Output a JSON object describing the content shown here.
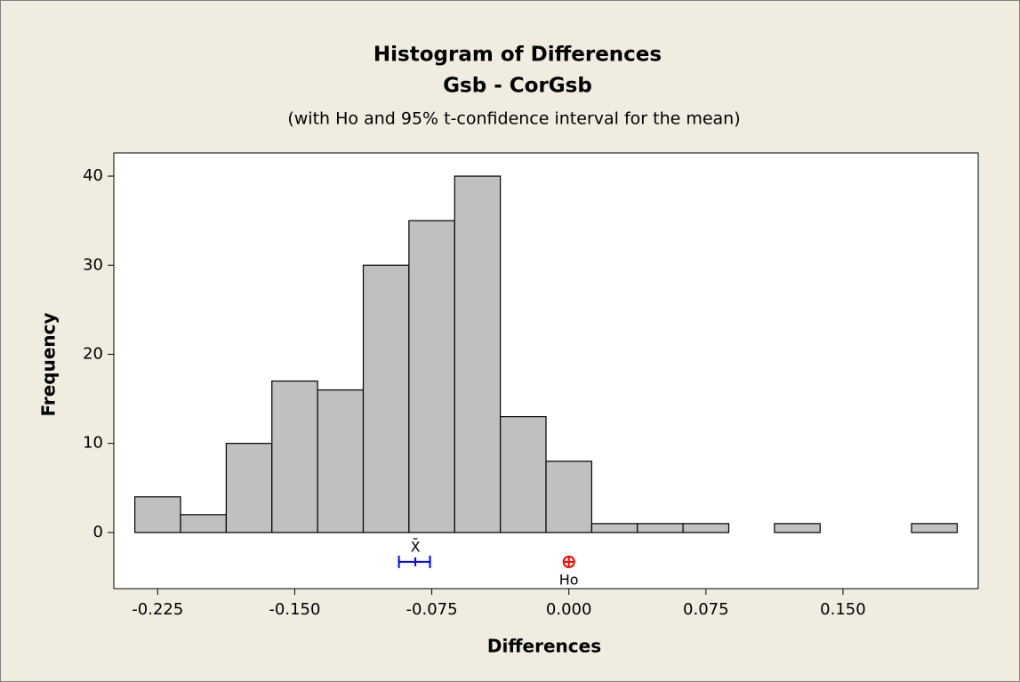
{
  "chart_data": {
    "type": "histogram",
    "title": "Histogram of Differences",
    "subtitle": "Gsb - CorGsb",
    "note": "(with Ho and 95% t-confidence interval for the mean)",
    "xlabel": "Differences",
    "ylabel": "Frequency",
    "bins": [
      -0.2375,
      -0.2125,
      -0.1875,
      -0.1625,
      -0.1375,
      -0.1125,
      -0.0875,
      -0.0625,
      -0.0375,
      -0.0125,
      0.0125,
      0.0375,
      0.0625,
      0.0875,
      0.1125,
      0.1375,
      0.1625,
      0.1875,
      0.2125
    ],
    "counts": [
      4,
      2,
      10,
      17,
      16,
      30,
      35,
      40,
      13,
      8,
      1,
      1,
      1,
      0,
      1,
      0,
      0,
      1
    ],
    "color": "#c0c0c0",
    "xlim": [
      -0.249,
      0.224
    ],
    "ylim": [
      -6.3,
      42.6
    ],
    "xticks": [
      {
        "value": -0.225,
        "label": "-0.225"
      },
      {
        "value": -0.15,
        "label": "-0.150"
      },
      {
        "value": -0.075,
        "label": "-0.075"
      },
      {
        "value": 0,
        "label": "0.000"
      },
      {
        "value": 0.075,
        "label": "0.075"
      },
      {
        "value": 0.15,
        "label": "0.150"
      }
    ],
    "yticks": [
      0,
      10,
      20,
      30,
      40
    ],
    "mean_ci": {
      "label": "X̄",
      "mean": -0.084,
      "lower": -0.093,
      "upper": -0.076,
      "color": "#0000ff"
    },
    "h0": {
      "label": "Ho",
      "value": 0,
      "color": "#ff0000"
    }
  }
}
